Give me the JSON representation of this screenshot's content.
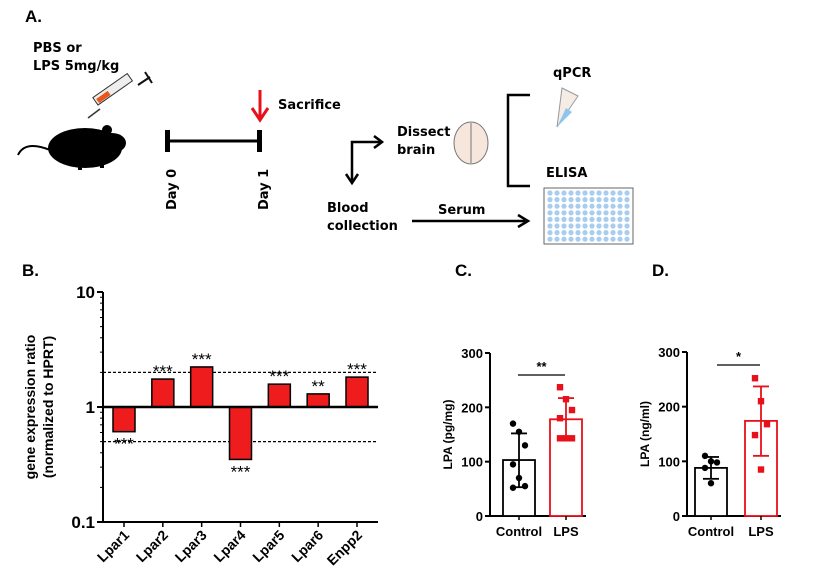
{
  "panel_labels": {
    "a": "A.",
    "b": "B.",
    "c": "C.",
    "d": "D."
  },
  "diagram": {
    "treatment": [
      "PBS or",
      "LPS 5mg/kg"
    ],
    "day0": "Day 0",
    "day1": "Day 1",
    "sacrifice": "Sacrifice",
    "dissect": [
      "Dissect",
      "brain"
    ],
    "blood": [
      "Blood",
      "collection"
    ],
    "serum": "Serum",
    "qpcr": "qPCR",
    "elisa": "ELISA",
    "colors": {
      "arrow_red": "#e8101a",
      "tube_fill": "#8ec5ef",
      "plate_well": "#a8cdee",
      "brain": "#f6e6dc"
    }
  },
  "chart_data": [
    {
      "type": "bar",
      "panel": "B.",
      "ylabel": [
        "gene expression ratio",
        "(normalized to HPRT)"
      ],
      "yscale": "log",
      "ylim": [
        0.1,
        10
      ],
      "yticks": [
        "0.1",
        "1",
        "10"
      ],
      "baseline": 1,
      "reference_lines": [
        2,
        0.5
      ],
      "categories": [
        "Lpar1",
        "Lpar2",
        "Lpar3",
        "Lpar4",
        "Lpar5",
        "Lpar6",
        "Enpp2"
      ],
      "values": [
        0.61,
        1.75,
        2.23,
        0.35,
        1.58,
        1.3,
        1.82
      ],
      "significance": [
        "***",
        "***",
        "***",
        "***",
        "***",
        "**",
        "***"
      ],
      "color": "#ee1c1c"
    },
    {
      "type": "bar",
      "panel": "C.",
      "ylabel": "LPA (pg/mg)",
      "ylim": [
        0,
        300
      ],
      "yticks": [
        "0",
        "100",
        "200",
        "300"
      ],
      "categories": [
        "Control",
        "LPS"
      ],
      "means": [
        103,
        178
      ],
      "error": [
        [
          53,
          152
        ],
        [
          141,
          217
        ]
      ],
      "points": [
        [
          170,
          155,
          130,
          95,
          70,
          55,
          52
        ],
        [
          237,
          215,
          195,
          180,
          143,
          143,
          143
        ]
      ],
      "significance": "**",
      "colors": [
        "#000000",
        "#e8101a"
      ]
    },
    {
      "type": "bar",
      "panel": "D.",
      "ylabel": "LPA (ng/ml)",
      "ylim": [
        0,
        300
      ],
      "yticks": [
        "0",
        "100",
        "200",
        "300"
      ],
      "categories": [
        "Control",
        "LPS"
      ],
      "means": [
        88,
        174
      ],
      "error": [
        [
          68,
          108
        ],
        [
          110,
          237
        ]
      ],
      "points": [
        [
          110,
          100,
          98,
          88,
          60
        ],
        [
          252,
          210,
          168,
          148,
          85
        ]
      ],
      "significance": "*",
      "colors": [
        "#000000",
        "#e8101a"
      ]
    }
  ]
}
